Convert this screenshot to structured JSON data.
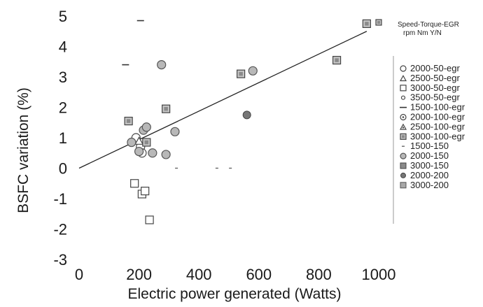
{
  "chart_data": {
    "type": "scatter",
    "title": "",
    "xlabel": "Electric power generated (Watts)",
    "ylabel": "BSFC variation (%)",
    "xlim": [
      0,
      1000
    ],
    "ylim": [
      -3,
      5
    ],
    "x_ticks": [
      "0",
      "200",
      "400",
      "600",
      "800",
      "1000"
    ],
    "y_ticks": [
      "5",
      "4",
      "3",
      "2",
      "1",
      "0",
      "-1",
      "-2",
      "-3"
    ],
    "grid": false,
    "legend_position": "right",
    "legend_header": {
      "line1": "Speed-Torque-EGR",
      "line2": "rpm    Nm   Y/N"
    },
    "series": [
      {
        "name": "2000-50-egr",
        "marker": "circle-open",
        "color": "#555555",
        "points": [
          [
            190,
            1.0
          ],
          [
            205,
            0.7
          ],
          [
            210,
            0.5
          ]
        ]
      },
      {
        "name": "2500-50-egr",
        "marker": "triangle-open",
        "color": "#555555",
        "points": [
          [
            200,
            0.9
          ]
        ]
      },
      {
        "name": "3000-50-egr",
        "marker": "square-open",
        "color": "#555555",
        "points": [
          [
            185,
            -0.5
          ],
          [
            210,
            -0.85
          ],
          [
            220,
            -0.75
          ],
          [
            235,
            -1.7
          ]
        ]
      },
      {
        "name": "3500-50-egr",
        "marker": "circle-small",
        "color": "#555555",
        "points": []
      },
      {
        "name": "1500-100-egr",
        "marker": "dash",
        "color": "#444444",
        "points": [
          [
            155,
            3.4
          ],
          [
            205,
            4.85
          ]
        ]
      },
      {
        "name": "2000-100-egr",
        "marker": "circle-dot",
        "color": "#555555",
        "points": []
      },
      {
        "name": "2500-100-egr",
        "marker": "triangle-dot",
        "color": "#555555",
        "points": []
      },
      {
        "name": "3000-100-egr",
        "marker": "square-shaded",
        "color": "#777777",
        "points": [
          [
            165,
            1.55
          ],
          [
            225,
            0.85
          ],
          [
            290,
            1.95
          ],
          [
            540,
            3.1
          ],
          [
            860,
            3.55
          ],
          [
            960,
            4.75
          ]
        ]
      },
      {
        "name": "1500-150",
        "marker": "tick",
        "color": "#666666",
        "points": [
          [
            325,
            0.0
          ],
          [
            460,
            0.0
          ],
          [
            505,
            0.0
          ]
        ]
      },
      {
        "name": "2000-150",
        "marker": "circle-shaded",
        "color": "#777777",
        "points": [
          [
            175,
            0.85
          ],
          [
            200,
            0.55
          ],
          [
            215,
            1.25
          ],
          [
            225,
            1.35
          ],
          [
            245,
            0.5
          ],
          [
            275,
            3.4
          ],
          [
            290,
            0.45
          ],
          [
            320,
            1.2
          ],
          [
            580,
            3.2
          ]
        ]
      },
      {
        "name": "3000-150",
        "marker": "square-filled",
        "color": "#666666",
        "points": []
      },
      {
        "name": "2000-200",
        "marker": "circle-filled",
        "color": "#666666",
        "points": [
          [
            560,
            1.75
          ]
        ]
      },
      {
        "name": "3000-200",
        "marker": "square-grey",
        "color": "#666666",
        "points": []
      }
    ],
    "trendline": {
      "x": [
        0,
        960
      ],
      "y": [
        0.0,
        4.5
      ]
    }
  }
}
